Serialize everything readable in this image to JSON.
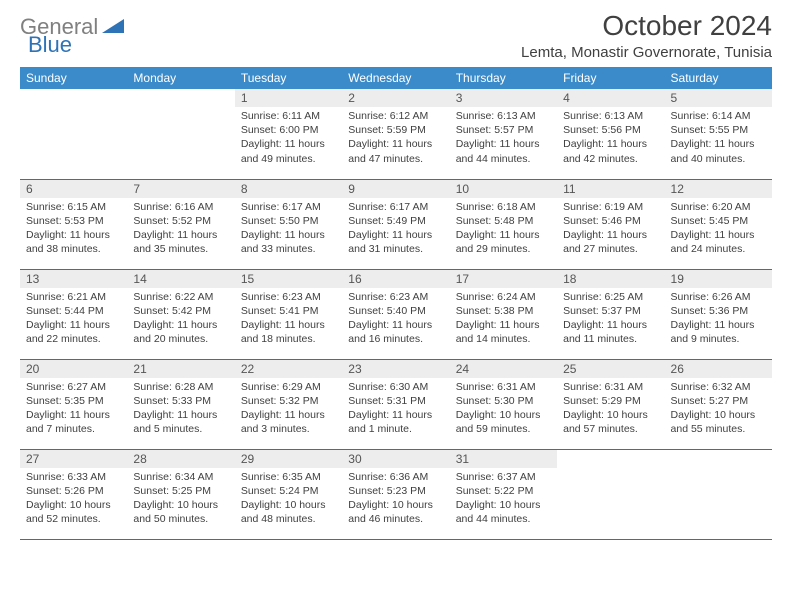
{
  "logo": {
    "gray": "General",
    "blue": "Blue"
  },
  "title": "October 2024",
  "location": "Lemta, Monastir Governorate, Tunisia",
  "colors": {
    "header_bg": "#3b8bca",
    "header_text": "#ffffff",
    "daynum_bg": "#ededed",
    "border": "#2d73b6",
    "logo_gray": "#808080",
    "logo_blue": "#2d73b6",
    "text": "#404040"
  },
  "day_names": [
    "Sunday",
    "Monday",
    "Tuesday",
    "Wednesday",
    "Thursday",
    "Friday",
    "Saturday"
  ],
  "weeks": [
    [
      null,
      null,
      {
        "n": "1",
        "sr": "Sunrise: 6:11 AM",
        "ss": "Sunset: 6:00 PM",
        "dl": "Daylight: 11 hours and 49 minutes."
      },
      {
        "n": "2",
        "sr": "Sunrise: 6:12 AM",
        "ss": "Sunset: 5:59 PM",
        "dl": "Daylight: 11 hours and 47 minutes."
      },
      {
        "n": "3",
        "sr": "Sunrise: 6:13 AM",
        "ss": "Sunset: 5:57 PM",
        "dl": "Daylight: 11 hours and 44 minutes."
      },
      {
        "n": "4",
        "sr": "Sunrise: 6:13 AM",
        "ss": "Sunset: 5:56 PM",
        "dl": "Daylight: 11 hours and 42 minutes."
      },
      {
        "n": "5",
        "sr": "Sunrise: 6:14 AM",
        "ss": "Sunset: 5:55 PM",
        "dl": "Daylight: 11 hours and 40 minutes."
      }
    ],
    [
      {
        "n": "6",
        "sr": "Sunrise: 6:15 AM",
        "ss": "Sunset: 5:53 PM",
        "dl": "Daylight: 11 hours and 38 minutes."
      },
      {
        "n": "7",
        "sr": "Sunrise: 6:16 AM",
        "ss": "Sunset: 5:52 PM",
        "dl": "Daylight: 11 hours and 35 minutes."
      },
      {
        "n": "8",
        "sr": "Sunrise: 6:17 AM",
        "ss": "Sunset: 5:50 PM",
        "dl": "Daylight: 11 hours and 33 minutes."
      },
      {
        "n": "9",
        "sr": "Sunrise: 6:17 AM",
        "ss": "Sunset: 5:49 PM",
        "dl": "Daylight: 11 hours and 31 minutes."
      },
      {
        "n": "10",
        "sr": "Sunrise: 6:18 AM",
        "ss": "Sunset: 5:48 PM",
        "dl": "Daylight: 11 hours and 29 minutes."
      },
      {
        "n": "11",
        "sr": "Sunrise: 6:19 AM",
        "ss": "Sunset: 5:46 PM",
        "dl": "Daylight: 11 hours and 27 minutes."
      },
      {
        "n": "12",
        "sr": "Sunrise: 6:20 AM",
        "ss": "Sunset: 5:45 PM",
        "dl": "Daylight: 11 hours and 24 minutes."
      }
    ],
    [
      {
        "n": "13",
        "sr": "Sunrise: 6:21 AM",
        "ss": "Sunset: 5:44 PM",
        "dl": "Daylight: 11 hours and 22 minutes."
      },
      {
        "n": "14",
        "sr": "Sunrise: 6:22 AM",
        "ss": "Sunset: 5:42 PM",
        "dl": "Daylight: 11 hours and 20 minutes."
      },
      {
        "n": "15",
        "sr": "Sunrise: 6:23 AM",
        "ss": "Sunset: 5:41 PM",
        "dl": "Daylight: 11 hours and 18 minutes."
      },
      {
        "n": "16",
        "sr": "Sunrise: 6:23 AM",
        "ss": "Sunset: 5:40 PM",
        "dl": "Daylight: 11 hours and 16 minutes."
      },
      {
        "n": "17",
        "sr": "Sunrise: 6:24 AM",
        "ss": "Sunset: 5:38 PM",
        "dl": "Daylight: 11 hours and 14 minutes."
      },
      {
        "n": "18",
        "sr": "Sunrise: 6:25 AM",
        "ss": "Sunset: 5:37 PM",
        "dl": "Daylight: 11 hours and 11 minutes."
      },
      {
        "n": "19",
        "sr": "Sunrise: 6:26 AM",
        "ss": "Sunset: 5:36 PM",
        "dl": "Daylight: 11 hours and 9 minutes."
      }
    ],
    [
      {
        "n": "20",
        "sr": "Sunrise: 6:27 AM",
        "ss": "Sunset: 5:35 PM",
        "dl": "Daylight: 11 hours and 7 minutes."
      },
      {
        "n": "21",
        "sr": "Sunrise: 6:28 AM",
        "ss": "Sunset: 5:33 PM",
        "dl": "Daylight: 11 hours and 5 minutes."
      },
      {
        "n": "22",
        "sr": "Sunrise: 6:29 AM",
        "ss": "Sunset: 5:32 PM",
        "dl": "Daylight: 11 hours and 3 minutes."
      },
      {
        "n": "23",
        "sr": "Sunrise: 6:30 AM",
        "ss": "Sunset: 5:31 PM",
        "dl": "Daylight: 11 hours and 1 minute."
      },
      {
        "n": "24",
        "sr": "Sunrise: 6:31 AM",
        "ss": "Sunset: 5:30 PM",
        "dl": "Daylight: 10 hours and 59 minutes."
      },
      {
        "n": "25",
        "sr": "Sunrise: 6:31 AM",
        "ss": "Sunset: 5:29 PM",
        "dl": "Daylight: 10 hours and 57 minutes."
      },
      {
        "n": "26",
        "sr": "Sunrise: 6:32 AM",
        "ss": "Sunset: 5:27 PM",
        "dl": "Daylight: 10 hours and 55 minutes."
      }
    ],
    [
      {
        "n": "27",
        "sr": "Sunrise: 6:33 AM",
        "ss": "Sunset: 5:26 PM",
        "dl": "Daylight: 10 hours and 52 minutes."
      },
      {
        "n": "28",
        "sr": "Sunrise: 6:34 AM",
        "ss": "Sunset: 5:25 PM",
        "dl": "Daylight: 10 hours and 50 minutes."
      },
      {
        "n": "29",
        "sr": "Sunrise: 6:35 AM",
        "ss": "Sunset: 5:24 PM",
        "dl": "Daylight: 10 hours and 48 minutes."
      },
      {
        "n": "30",
        "sr": "Sunrise: 6:36 AM",
        "ss": "Sunset: 5:23 PM",
        "dl": "Daylight: 10 hours and 46 minutes."
      },
      {
        "n": "31",
        "sr": "Sunrise: 6:37 AM",
        "ss": "Sunset: 5:22 PM",
        "dl": "Daylight: 10 hours and 44 minutes."
      },
      null,
      null
    ]
  ]
}
